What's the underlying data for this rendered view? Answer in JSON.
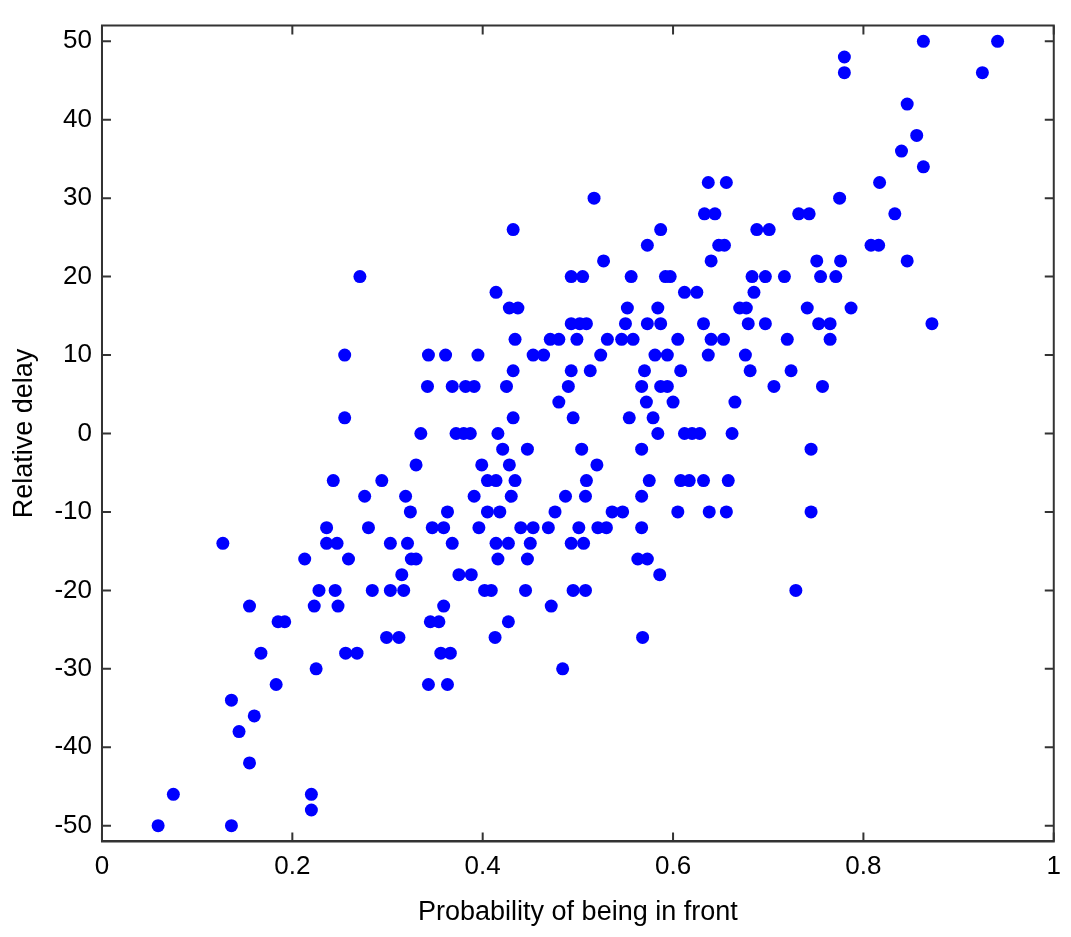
{
  "chart_data": {
    "type": "scatter",
    "xlabel": "Probability of being in front",
    "ylabel": "Relative delay",
    "xlim": [
      0,
      1
    ],
    "xticks": [
      0,
      0.2,
      0.4,
      0.6,
      0.8,
      1
    ],
    "ylim": [
      -52,
      52
    ],
    "yticks": [
      -50,
      -40,
      -30,
      -20,
      -10,
      0,
      10,
      20,
      30,
      40,
      50
    ],
    "marker": "circle",
    "legend": false,
    "series": [
      {
        "color": "#0000ff",
        "x": [
          0.271,
          0.255,
          0.255,
          0.335,
          0.637,
          0.656,
          0.517,
          0.633,
          0.644,
          0.432,
          0.587,
          0.573,
          0.648,
          0.654,
          0.527,
          0.64,
          0.493,
          0.505,
          0.556,
          0.592,
          0.597,
          0.414,
          0.612,
          0.625,
          0.428,
          0.437,
          0.552,
          0.584,
          0.493,
          0.502,
          0.509,
          0.55,
          0.573,
          0.587,
          0.632,
          0.434,
          0.471,
          0.48,
          0.499,
          0.531,
          0.546,
          0.558,
          0.605,
          0.64,
          0.653,
          0.343,
          0.361,
          0.395,
          0.453,
          0.464,
          0.524,
          0.581,
          0.594,
          0.637,
          0.432,
          0.493,
          0.513,
          0.57,
          0.608,
          0.342,
          0.368,
          0.382,
          0.391,
          0.425,
          0.49,
          0.567,
          0.587,
          0.594,
          0.48,
          0.572,
          0.6,
          0.665,
          0.432,
          0.495,
          0.554,
          0.579,
          0.372,
          0.38,
          0.387,
          0.416,
          0.584,
          0.612,
          0.62,
          0.628,
          0.662,
          0.863,
          0.941,
          0.78,
          0.78,
          0.925,
          0.846,
          0.856,
          0.84,
          0.863,
          0.817,
          0.775,
          0.732,
          0.743,
          0.833,
          0.688,
          0.701,
          0.808,
          0.816,
          0.751,
          0.776,
          0.846,
          0.683,
          0.697,
          0.717,
          0.755,
          0.771,
          0.685,
          0.67,
          0.677,
          0.741,
          0.787,
          0.679,
          0.697,
          0.753,
          0.765,
          0.872,
          0.72,
          0.765,
          0.676,
          0.681,
          0.724,
          0.706,
          0.757,
          0.33,
          0.243,
          0.294,
          0.276,
          0.319,
          0.324,
          0.236,
          0.28,
          0.127,
          0.236,
          0.247,
          0.303,
          0.321,
          0.213,
          0.259,
          0.325,
          0.33,
          0.315,
          0.228,
          0.245,
          0.284,
          0.303,
          0.317,
          0.155,
          0.223,
          0.248,
          0.185,
          0.192,
          0.299,
          0.312,
          0.167,
          0.256,
          0.268,
          0.225,
          0.183,
          0.136,
          0.16,
          0.144,
          0.155,
          0.075,
          0.22,
          0.22,
          0.059,
          0.136,
          0.421,
          0.447,
          0.504,
          0.567,
          0.399,
          0.428,
          0.52,
          0.405,
          0.414,
          0.434,
          0.509,
          0.575,
          0.608,
          0.617,
          0.632,
          0.658,
          0.391,
          0.43,
          0.487,
          0.508,
          0.567,
          0.363,
          0.405,
          0.418,
          0.476,
          0.536,
          0.547,
          0.605,
          0.638,
          0.656,
          0.347,
          0.359,
          0.396,
          0.44,
          0.453,
          0.469,
          0.501,
          0.521,
          0.53,
          0.567,
          0.368,
          0.414,
          0.427,
          0.45,
          0.493,
          0.506,
          0.416,
          0.447,
          0.563,
          0.573,
          0.375,
          0.388,
          0.586,
          0.402,
          0.409,
          0.445,
          0.495,
          0.508,
          0.359,
          0.472,
          0.345,
          0.354,
          0.427,
          0.413,
          0.568,
          0.356,
          0.366,
          0.484,
          0.343,
          0.363,
          0.745,
          0.745,
          0.729
        ],
        "values": [
          20,
          10,
          2,
          0,
          32,
          32,
          30,
          28,
          28,
          26,
          26,
          24,
          24,
          24,
          22,
          22,
          20,
          20,
          20,
          20,
          20,
          18,
          18,
          18,
          16,
          16,
          16,
          16,
          14,
          14,
          14,
          14,
          14,
          14,
          14,
          12,
          12,
          12,
          12,
          12,
          12,
          12,
          12,
          12,
          12,
          10,
          10,
          10,
          10,
          10,
          10,
          10,
          10,
          10,
          8,
          8,
          8,
          8,
          8,
          6,
          6,
          6,
          6,
          6,
          6,
          6,
          6,
          6,
          4,
          4,
          4,
          4,
          2,
          2,
          2,
          2,
          0,
          0,
          0,
          0,
          0,
          0,
          0,
          0,
          0,
          50,
          50,
          48,
          46,
          46,
          42,
          38,
          36,
          34,
          32,
          30,
          28,
          28,
          28,
          26,
          26,
          24,
          24,
          22,
          22,
          22,
          20,
          20,
          20,
          20,
          20,
          18,
          16,
          16,
          16,
          16,
          14,
          14,
          14,
          14,
          14,
          12,
          12,
          10,
          8,
          8,
          6,
          6,
          -4,
          -6,
          -6,
          -8,
          -8,
          -10,
          -12,
          -12,
          -14,
          -14,
          -14,
          -14,
          -14,
          -16,
          -16,
          -16,
          -16,
          -18,
          -20,
          -20,
          -20,
          -20,
          -20,
          -22,
          -22,
          -22,
          -24,
          -24,
          -26,
          -26,
          -28,
          -28,
          -28,
          -30,
          -32,
          -34,
          -36,
          -38,
          -42,
          -46,
          -46,
          -48,
          -50,
          -50,
          -2,
          -2,
          -2,
          -2,
          -4,
          -4,
          -4,
          -6,
          -6,
          -6,
          -6,
          -6,
          -6,
          -6,
          -6,
          -6,
          -8,
          -8,
          -8,
          -8,
          -8,
          -10,
          -10,
          -10,
          -10,
          -10,
          -10,
          -10,
          -10,
          -10,
          -12,
          -12,
          -12,
          -12,
          -12,
          -12,
          -12,
          -12,
          -12,
          -12,
          -14,
          -14,
          -14,
          -14,
          -14,
          -14,
          -16,
          -16,
          -16,
          -16,
          -18,
          -18,
          -18,
          -20,
          -20,
          -20,
          -20,
          -20,
          -22,
          -22,
          -24,
          -24,
          -24,
          -26,
          -26,
          -28,
          -28,
          -30,
          -32,
          -32,
          -2,
          -10,
          -20
        ]
      }
    ]
  }
}
